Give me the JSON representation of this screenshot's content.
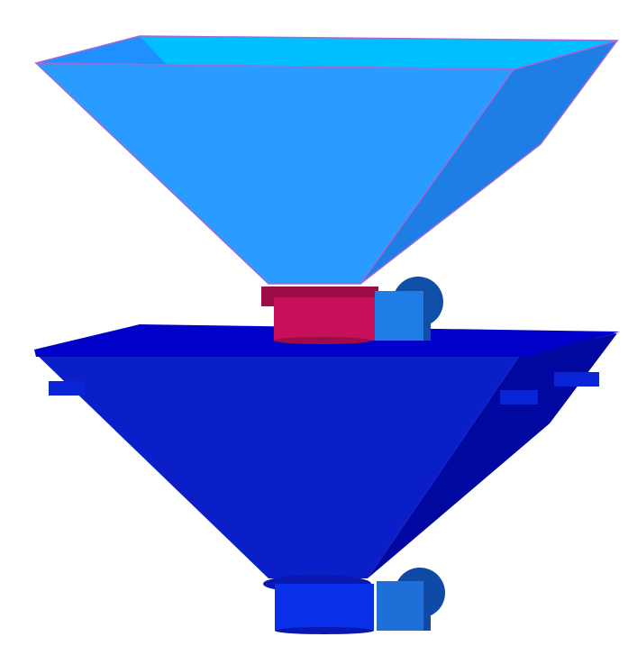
{
  "scene": {
    "background": "#ffffff",
    "upper_hopper": {
      "inner_wall_color": "#00bfff",
      "front_face_color": "#2b9cff",
      "side_face_color": "#1f7de6",
      "edge_color": "#a06ad8",
      "rim_color": "#1e90ff"
    },
    "upper_valve": {
      "body_color": "#c8105a",
      "body_shade_color": "#9c0c46",
      "motor_color": "#1f7de6",
      "motor_shade_color": "#0f4fa8"
    },
    "lower_hopper": {
      "inner_wall_color": "#0000e0",
      "front_face_color": "#0a1fc8",
      "side_face_color": "#0008a0",
      "rim_color": "#0000c8",
      "bracket_color": "#0a24d8"
    },
    "lower_valve": {
      "body_color": "#0a2fe8",
      "body_shade_color": "#0818b0",
      "motor_color": "#1f6fd8",
      "motor_shade_color": "#0e4aa6"
    }
  }
}
